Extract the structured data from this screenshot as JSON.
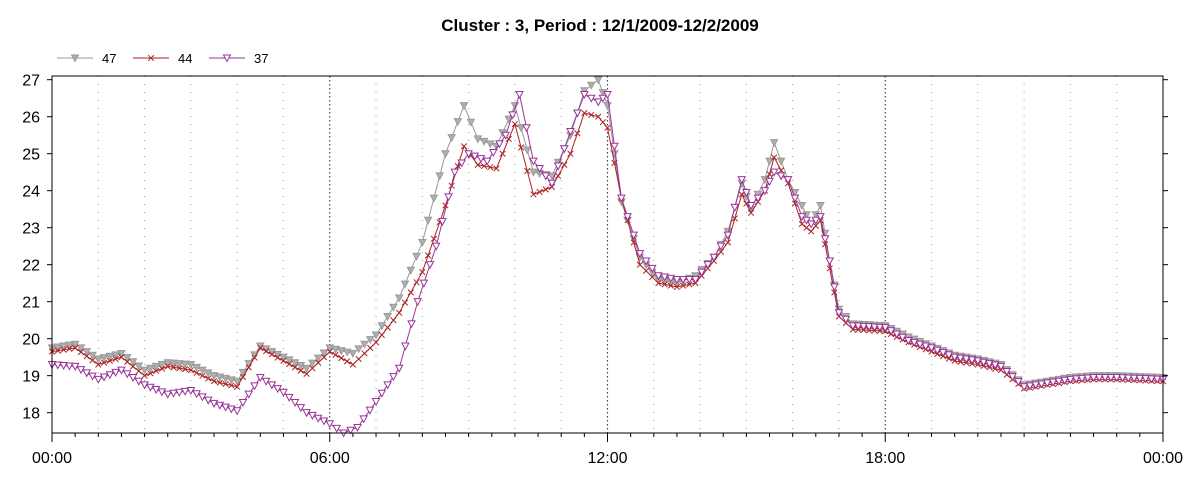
{
  "chart_data": {
    "type": "line",
    "title": "Cluster : 3, Period : 12/1/2009-12/2/2009",
    "xlabel": "",
    "ylabel": "",
    "x_ticks": [
      "00:00",
      "06:00",
      "12:00",
      "18:00",
      "00:00"
    ],
    "xlim_hours": [
      0,
      24
    ],
    "ylim": [
      17.45,
      27.1
    ],
    "y_ticks": [
      18,
      19,
      20,
      21,
      22,
      23,
      24,
      25,
      26,
      27
    ],
    "grid": "dotted",
    "legend_position": "top-left",
    "series": [
      {
        "name": "47",
        "color": "#999999",
        "marker": "triangle-down-filled",
        "points": [
          [
            0,
            19.75
          ],
          [
            0.5,
            19.85
          ],
          [
            1,
            19.45
          ],
          [
            1.5,
            19.6
          ],
          [
            2,
            19.15
          ],
          [
            2.5,
            19.35
          ],
          [
            3,
            19.3
          ],
          [
            3.5,
            19.0
          ],
          [
            4,
            18.85
          ],
          [
            4.5,
            19.8
          ],
          [
            5,
            19.5
          ],
          [
            5.5,
            19.2
          ],
          [
            6,
            19.75
          ],
          [
            6.5,
            19.6
          ],
          [
            7,
            20.1
          ],
          [
            7.5,
            21.1
          ],
          [
            8,
            22.6
          ],
          [
            8.5,
            25.0
          ],
          [
            8.9,
            26.3
          ],
          [
            9.2,
            25.4
          ],
          [
            9.6,
            25.2
          ],
          [
            10.0,
            26.3
          ],
          [
            10.4,
            24.5
          ],
          [
            10.8,
            24.4
          ],
          [
            11.2,
            25.5
          ],
          [
            11.5,
            26.7
          ],
          [
            11.8,
            27.0
          ],
          [
            12.0,
            26.3
          ],
          [
            12.3,
            23.7
          ],
          [
            12.7,
            22.2
          ],
          [
            13.1,
            21.6
          ],
          [
            13.5,
            21.5
          ],
          [
            13.9,
            21.7
          ],
          [
            14.3,
            22.2
          ],
          [
            14.6,
            22.9
          ],
          [
            14.9,
            24.2
          ],
          [
            15.1,
            23.5
          ],
          [
            15.4,
            24.3
          ],
          [
            15.6,
            25.3
          ],
          [
            15.9,
            24.3
          ],
          [
            16.2,
            23.6
          ],
          [
            16.4,
            23.1
          ],
          [
            16.6,
            23.6
          ],
          [
            16.8,
            22.1
          ],
          [
            17.0,
            20.8
          ],
          [
            17.3,
            20.4
          ],
          [
            18.0,
            20.35
          ],
          [
            18.5,
            20.05
          ],
          [
            19.0,
            19.8
          ],
          [
            19.5,
            19.55
          ],
          [
            20.0,
            19.45
          ],
          [
            20.5,
            19.3
          ],
          [
            21.0,
            18.75
          ],
          [
            21.5,
            18.85
          ],
          [
            22.0,
            18.95
          ],
          [
            22.5,
            19.0
          ],
          [
            23.0,
            19.0
          ],
          [
            24.0,
            18.95
          ]
        ]
      },
      {
        "name": "44",
        "color": "#aa2222",
        "marker": "x",
        "points": [
          [
            0,
            19.65
          ],
          [
            0.5,
            19.75
          ],
          [
            1,
            19.3
          ],
          [
            1.5,
            19.5
          ],
          [
            2,
            19.0
          ],
          [
            2.5,
            19.25
          ],
          [
            3,
            19.15
          ],
          [
            3.5,
            18.85
          ],
          [
            4,
            18.7
          ],
          [
            4.5,
            19.75
          ],
          [
            5,
            19.4
          ],
          [
            5.5,
            19.05
          ],
          [
            6,
            19.65
          ],
          [
            6.5,
            19.3
          ],
          [
            7,
            19.9
          ],
          [
            7.5,
            20.7
          ],
          [
            8,
            21.8
          ],
          [
            8.5,
            23.6
          ],
          [
            8.9,
            25.2
          ],
          [
            9.2,
            24.7
          ],
          [
            9.6,
            24.6
          ],
          [
            10.0,
            25.8
          ],
          [
            10.4,
            23.9
          ],
          [
            10.8,
            24.1
          ],
          [
            11.2,
            25.0
          ],
          [
            11.5,
            26.1
          ],
          [
            11.8,
            26.0
          ],
          [
            12.0,
            25.7
          ],
          [
            12.3,
            23.8
          ],
          [
            12.7,
            22.0
          ],
          [
            13.1,
            21.5
          ],
          [
            13.5,
            21.4
          ],
          [
            13.9,
            21.5
          ],
          [
            14.3,
            22.1
          ],
          [
            14.6,
            22.6
          ],
          [
            14.9,
            23.9
          ],
          [
            15.1,
            23.4
          ],
          [
            15.4,
            24.0
          ],
          [
            15.6,
            24.9
          ],
          [
            15.9,
            24.2
          ],
          [
            16.2,
            23.1
          ],
          [
            16.4,
            22.9
          ],
          [
            16.6,
            23.2
          ],
          [
            16.8,
            21.9
          ],
          [
            17.0,
            20.6
          ],
          [
            17.3,
            20.25
          ],
          [
            18.0,
            20.2
          ],
          [
            18.5,
            19.9
          ],
          [
            19.0,
            19.65
          ],
          [
            19.5,
            19.4
          ],
          [
            20.0,
            19.3
          ],
          [
            20.5,
            19.15
          ],
          [
            21.0,
            18.65
          ],
          [
            21.5,
            18.75
          ],
          [
            22.0,
            18.85
          ],
          [
            22.5,
            18.9
          ],
          [
            23.0,
            18.9
          ],
          [
            24.0,
            18.85
          ]
        ]
      },
      {
        "name": "37",
        "color": "#993399",
        "marker": "triangle-down-open",
        "points": [
          [
            0,
            19.3
          ],
          [
            0.5,
            19.25
          ],
          [
            1,
            18.9
          ],
          [
            1.5,
            19.15
          ],
          [
            2,
            18.75
          ],
          [
            2.5,
            18.5
          ],
          [
            3,
            18.6
          ],
          [
            3.5,
            18.25
          ],
          [
            4,
            18.05
          ],
          [
            4.5,
            18.95
          ],
          [
            5,
            18.55
          ],
          [
            5.5,
            18.0
          ],
          [
            6,
            17.7
          ],
          [
            6.3,
            17.45
          ],
          [
            6.6,
            17.6
          ],
          [
            7,
            18.3
          ],
          [
            7.5,
            19.2
          ],
          [
            7.9,
            21.0
          ],
          [
            8.3,
            22.5
          ],
          [
            8.7,
            24.5
          ],
          [
            9.0,
            25.0
          ],
          [
            9.4,
            24.8
          ],
          [
            9.8,
            25.5
          ],
          [
            10.1,
            26.6
          ],
          [
            10.4,
            24.8
          ],
          [
            10.8,
            24.2
          ],
          [
            11.2,
            25.6
          ],
          [
            11.5,
            26.6
          ],
          [
            11.8,
            26.4
          ],
          [
            12.0,
            26.6
          ],
          [
            12.3,
            23.8
          ],
          [
            12.7,
            22.3
          ],
          [
            13.1,
            21.7
          ],
          [
            13.5,
            21.6
          ],
          [
            13.9,
            21.6
          ],
          [
            14.3,
            22.2
          ],
          [
            14.6,
            22.8
          ],
          [
            14.9,
            24.3
          ],
          [
            15.1,
            23.6
          ],
          [
            15.4,
            24.0
          ],
          [
            15.6,
            24.5
          ],
          [
            15.9,
            24.3
          ],
          [
            16.2,
            23.3
          ],
          [
            16.4,
            23.1
          ],
          [
            16.6,
            23.3
          ],
          [
            16.8,
            22.1
          ],
          [
            17.0,
            20.7
          ],
          [
            17.3,
            20.35
          ],
          [
            18.0,
            20.3
          ],
          [
            18.5,
            19.95
          ],
          [
            19.0,
            19.75
          ],
          [
            19.5,
            19.5
          ],
          [
            20.0,
            19.4
          ],
          [
            20.5,
            19.25
          ],
          [
            21.0,
            18.7
          ],
          [
            21.5,
            18.8
          ],
          [
            22.0,
            18.9
          ],
          [
            22.5,
            18.95
          ],
          [
            23.0,
            18.95
          ],
          [
            24.0,
            18.9
          ]
        ]
      }
    ]
  }
}
